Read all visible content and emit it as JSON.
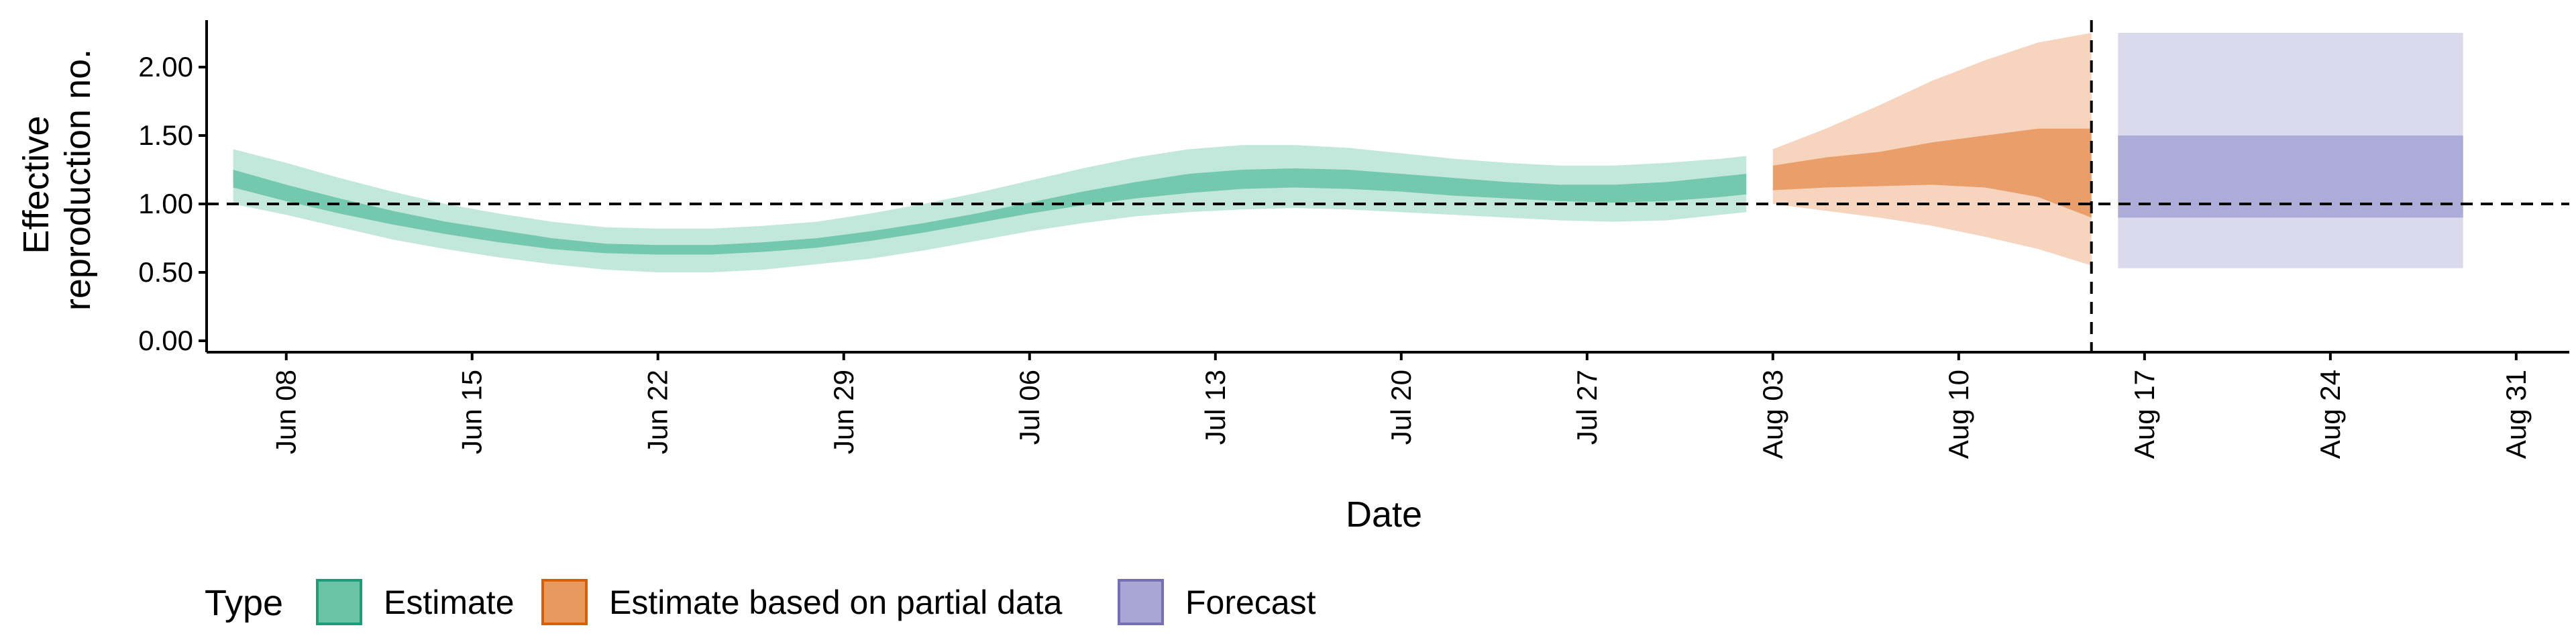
{
  "chart_data": {
    "type": "area",
    "title": "",
    "xlabel": "Date",
    "ylabel": [
      "Effective",
      "reproduction no."
    ],
    "x_start": "2020-06-05",
    "x_end": "2020-09-02",
    "ylim": [
      0,
      2.35
    ],
    "yticks": [
      0.0,
      0.5,
      1.0,
      1.5,
      2.0
    ],
    "ytick_labels": [
      "0.00",
      "0.50",
      "1.00",
      "1.50",
      "2.00"
    ],
    "xticks": [
      "2020-06-08",
      "2020-06-15",
      "2020-06-22",
      "2020-06-29",
      "2020-07-06",
      "2020-07-13",
      "2020-07-20",
      "2020-07-27",
      "2020-08-03",
      "2020-08-10",
      "2020-08-17",
      "2020-08-24",
      "2020-08-31"
    ],
    "xtick_labels": [
      "Jun 08",
      "Jun 15",
      "Jun 22",
      "Jun 29",
      "Jul 06",
      "Jul 13",
      "Jul 20",
      "Jul 27",
      "Aug 03",
      "Aug 10",
      "Aug 17",
      "Aug 24",
      "Aug 31"
    ],
    "reference_line_y": 1.0,
    "vertical_line_x": "2020-08-15",
    "grid": false,
    "legend_position": "bottom",
    "legend_title": "Type",
    "series": [
      {
        "name": "Estimate",
        "color": "#66C2A5",
        "dates": [
          "2020-06-06",
          "2020-06-08",
          "2020-06-10",
          "2020-06-12",
          "2020-06-14",
          "2020-06-16",
          "2020-06-18",
          "2020-06-20",
          "2020-06-22",
          "2020-06-24",
          "2020-06-26",
          "2020-06-28",
          "2020-06-30",
          "2020-07-02",
          "2020-07-04",
          "2020-07-06",
          "2020-07-08",
          "2020-07-10",
          "2020-07-12",
          "2020-07-14",
          "2020-07-16",
          "2020-07-18",
          "2020-07-20",
          "2020-07-22",
          "2020-07-24",
          "2020-07-26",
          "2020-07-28",
          "2020-07-30",
          "2020-08-01",
          "2020-08-02"
        ],
        "outer_lower": [
          1.0,
          0.92,
          0.83,
          0.74,
          0.67,
          0.61,
          0.56,
          0.52,
          0.5,
          0.5,
          0.52,
          0.56,
          0.6,
          0.66,
          0.73,
          0.8,
          0.86,
          0.91,
          0.94,
          0.96,
          0.97,
          0.96,
          0.94,
          0.92,
          0.9,
          0.88,
          0.87,
          0.88,
          0.92,
          0.94
        ],
        "inner_lower": [
          1.12,
          1.02,
          0.93,
          0.85,
          0.78,
          0.72,
          0.67,
          0.64,
          0.63,
          0.63,
          0.65,
          0.68,
          0.73,
          0.79,
          0.86,
          0.93,
          0.99,
          1.04,
          1.08,
          1.11,
          1.12,
          1.11,
          1.09,
          1.06,
          1.04,
          1.02,
          1.01,
          1.02,
          1.05,
          1.07
        ],
        "inner_upper": [
          1.25,
          1.14,
          1.04,
          0.95,
          0.87,
          0.81,
          0.75,
          0.71,
          0.7,
          0.7,
          0.72,
          0.75,
          0.8,
          0.86,
          0.93,
          1.01,
          1.09,
          1.16,
          1.22,
          1.25,
          1.26,
          1.25,
          1.22,
          1.19,
          1.16,
          1.14,
          1.14,
          1.16,
          1.2,
          1.22
        ],
        "outer_upper": [
          1.4,
          1.3,
          1.19,
          1.09,
          1.0,
          0.93,
          0.87,
          0.83,
          0.82,
          0.82,
          0.84,
          0.87,
          0.93,
          1.0,
          1.08,
          1.17,
          1.26,
          1.34,
          1.4,
          1.43,
          1.43,
          1.41,
          1.37,
          1.33,
          1.3,
          1.28,
          1.28,
          1.3,
          1.33,
          1.35
        ]
      },
      {
        "name": "Estimate based on partial data",
        "color": "#E8945A",
        "dates": [
          "2020-08-03",
          "2020-08-05",
          "2020-08-07",
          "2020-08-09",
          "2020-08-11",
          "2020-08-13",
          "2020-08-15"
        ],
        "outer_lower": [
          1.0,
          0.95,
          0.9,
          0.84,
          0.76,
          0.67,
          0.55
        ],
        "inner_lower": [
          1.1,
          1.12,
          1.13,
          1.14,
          1.12,
          1.05,
          0.9
        ],
        "inner_upper": [
          1.28,
          1.34,
          1.38,
          1.45,
          1.5,
          1.55,
          1.55
        ],
        "outer_upper": [
          1.4,
          1.55,
          1.72,
          1.9,
          2.05,
          2.18,
          2.25
        ]
      },
      {
        "name": "Forecast",
        "color": "#A5A3D3",
        "dates": [
          "2020-08-16",
          "2020-08-29"
        ],
        "outer_lower": [
          0.53,
          0.53
        ],
        "inner_lower": [
          0.9,
          0.9
        ],
        "inner_upper": [
          1.5,
          1.5
        ],
        "outer_upper": [
          2.25,
          2.25
        ]
      }
    ]
  },
  "legend": {
    "title": "Type",
    "items": [
      {
        "label": "Estimate",
        "fill": "#6BC3A6",
        "border": "#1B9E77"
      },
      {
        "label": "Estimate based on partial data",
        "fill": "#E8995E",
        "border": "#D95F02"
      },
      {
        "label": "Forecast",
        "fill": "#A9A6D4",
        "border": "#7570B3"
      }
    ]
  }
}
